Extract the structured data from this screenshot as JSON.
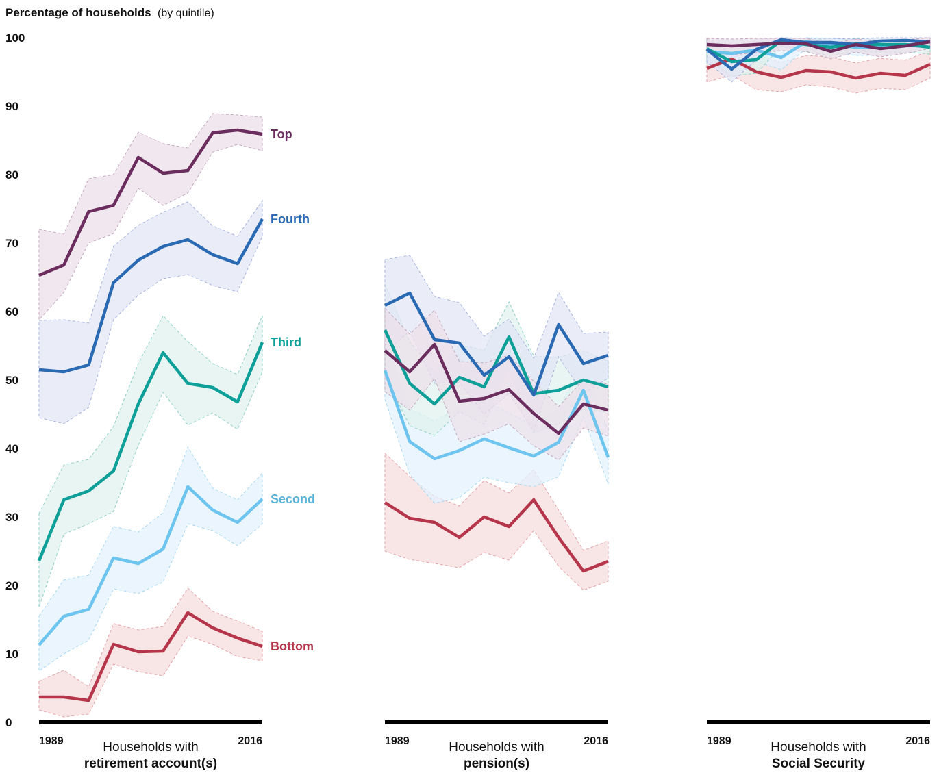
{
  "chart_data": {
    "type": "line",
    "title": "Percentage of households",
    "title_suffix": "(by quintile)",
    "ylim": [
      0,
      100
    ],
    "yticks": [
      0,
      10,
      20,
      30,
      40,
      50,
      60,
      70,
      80,
      90,
      100
    ],
    "x": [
      "1989",
      "1992",
      "1995",
      "1998",
      "2001",
      "2004",
      "2007",
      "2010",
      "2013",
      "2016"
    ],
    "x_labels_shown": [
      "1989",
      "2016"
    ],
    "series_styles": [
      {
        "name": "Bottom",
        "color": "#b5364b",
        "fill": "#f6dcdc",
        "stroke_dash": "#e3a3a8"
      },
      {
        "name": "Second",
        "color": "#6cc4ef",
        "fill": "#e3f2fd",
        "stroke_dash": "#a8d8f2"
      },
      {
        "name": "Third",
        "color": "#0d9f98",
        "fill": "#e0f2ee",
        "stroke_dash": "#8fd0c8"
      },
      {
        "name": "Fourth",
        "color": "#2a6ab3",
        "fill": "#e3e6f5",
        "stroke_dash": "#a7b4de"
      },
      {
        "name": "Top",
        "color": "#6b2c5e",
        "fill": "#ece0e9",
        "stroke_dash": "#c3a8be"
      }
    ],
    "label_colors": {
      "Bottom": "#b5364b",
      "Second": "#5bb3d8",
      "Third": "#0d9f98",
      "Fourth": "#2a6ab3",
      "Top": "#6b2c5e"
    },
    "panels": [
      {
        "label_line1": "Households with",
        "label_line2": "retirement account(s)",
        "show_series_labels": true,
        "series": [
          {
            "name": "Bottom",
            "values": [
              3.7,
              3.7,
              3.2,
              11.4,
              10.3,
              10.4,
              16.0,
              13.8,
              12.3,
              11.1
            ],
            "lower": [
              1.8,
              0.8,
              1.2,
              8.5,
              7.4,
              6.8,
              12.6,
              11.4,
              9.6,
              9.0
            ],
            "upper": [
              6.0,
              7.6,
              5.2,
              14.4,
              13.5,
              14.0,
              19.6,
              16.2,
              14.8,
              13.3
            ]
          },
          {
            "name": "Second",
            "values": [
              11.3,
              15.5,
              16.5,
              24.0,
              23.2,
              25.3,
              34.4,
              31.0,
              29.2,
              32.6
            ],
            "lower": [
              7.5,
              10.0,
              12.0,
              19.5,
              18.8,
              20.5,
              29.0,
              28.0,
              25.8,
              29.0
            ],
            "upper": [
              15.5,
              20.8,
              21.5,
              28.6,
              27.8,
              30.6,
              40.2,
              34.2,
              32.5,
              36.4
            ]
          },
          {
            "name": "Third",
            "values": [
              23.6,
              32.5,
              33.8,
              36.7,
              46.5,
              54.0,
              49.5,
              48.9,
              46.8,
              55.5
            ],
            "lower": [
              16.8,
              27.5,
              29.0,
              30.8,
              40.5,
              48.2,
              43.4,
              45.2,
              42.8,
              51.2
            ],
            "upper": [
              30.5,
              37.6,
              38.4,
              43.2,
              52.4,
              59.4,
              55.6,
              52.4,
              50.8,
              59.4
            ]
          },
          {
            "name": "Fourth",
            "values": [
              51.5,
              51.2,
              52.2,
              64.2,
              67.5,
              69.5,
              70.5,
              68.3,
              67.0,
              73.5
            ],
            "lower": [
              44.5,
              43.6,
              46.0,
              58.8,
              62.4,
              64.8,
              65.4,
              63.8,
              62.9,
              71.0
            ],
            "upper": [
              58.7,
              58.8,
              58.3,
              69.5,
              72.6,
              74.5,
              76.0,
              72.5,
              71.0,
              76.2
            ]
          },
          {
            "name": "Top",
            "values": [
              65.3,
              66.8,
              74.6,
              75.5,
              82.5,
              80.2,
              80.6,
              86.1,
              86.5,
              85.9
            ],
            "lower": [
              58.8,
              62.8,
              70.0,
              71.4,
              78.0,
              75.5,
              77.3,
              83.3,
              84.4,
              83.5
            ],
            "upper": [
              72.0,
              71.3,
              79.4,
              80.0,
              86.2,
              84.5,
              83.9,
              88.9,
              88.7,
              88.4
            ]
          }
        ]
      },
      {
        "label_line1": "Households with",
        "label_line2": "pension(s)",
        "show_series_labels": false,
        "series": [
          {
            "name": "Bottom",
            "values": [
              32.1,
              29.8,
              29.2,
              27.0,
              30.0,
              28.6,
              32.5,
              27.0,
              22.1,
              23.5
            ],
            "lower": [
              25.0,
              23.8,
              23.2,
              22.6,
              24.8,
              23.7,
              28.0,
              22.8,
              19.3,
              20.6
            ],
            "upper": [
              39.3,
              35.9,
              33.0,
              31.6,
              35.3,
              33.5,
              36.9,
              31.0,
              25.1,
              26.5
            ]
          },
          {
            "name": "Second",
            "values": [
              51.4,
              41.0,
              38.5,
              39.7,
              41.4,
              40.1,
              38.9,
              40.9,
              48.5,
              38.7
            ],
            "lower": [
              47.2,
              36.2,
              32.0,
              32.8,
              35.8,
              35.0,
              34.4,
              35.9,
              44.6,
              34.8
            ],
            "upper": [
              55.6,
              45.8,
              44.0,
              46.0,
              47.0,
              45.2,
              43.4,
              45.9,
              52.4,
              42.6
            ]
          },
          {
            "name": "Third",
            "values": [
              57.3,
              49.5,
              46.5,
              50.4,
              49.0,
              56.3,
              48.0,
              48.5,
              50.0,
              49.0
            ],
            "lower": [
              50.6,
              43.3,
              41.9,
              45.4,
              43.5,
              51.6,
              42.3,
              43.6,
              45.7,
              45.3
            ],
            "upper": [
              64.0,
              55.6,
              51.2,
              55.1,
              54.4,
              61.4,
              53.5,
              53.3,
              54.3,
              52.7
            ]
          },
          {
            "name": "Fourth",
            "values": [
              60.9,
              62.7,
              55.9,
              55.4,
              50.7,
              53.4,
              47.8,
              58.1,
              52.4,
              53.6
            ],
            "lower": [
              54.0,
              57.2,
              49.5,
              49.7,
              45.0,
              48.0,
              42.5,
              53.4,
              48.0,
              50.3
            ],
            "upper": [
              67.6,
              68.2,
              62.2,
              61.3,
              56.4,
              58.9,
              53.2,
              62.8,
              56.8,
              57.0
            ]
          },
          {
            "name": "Top",
            "values": [
              54.3,
              51.2,
              55.2,
              46.9,
              47.3,
              48.6,
              45.1,
              42.2,
              46.5,
              45.6
            ],
            "lower": [
              48.3,
              45.6,
              50.2,
              41.0,
              42.1,
              43.6,
              40.4,
              38.3,
              43.0,
              41.8
            ],
            "upper": [
              60.5,
              56.7,
              60.2,
              52.7,
              52.5,
              53.6,
              49.8,
              46.1,
              50.0,
              49.4
            ]
          }
        ]
      },
      {
        "label_line1": "Households with",
        "label_line2": "Social Security",
        "show_series_labels": false,
        "series": [
          {
            "name": "Bottom",
            "values": [
              95.5,
              96.9,
              95.0,
              94.2,
              95.2,
              95.0,
              94.1,
              94.8,
              94.5,
              96.1
            ],
            "lower": [
              93.5,
              94.5,
              92.4,
              92.1,
              93.1,
              92.8,
              91.9,
              92.6,
              92.4,
              94.1
            ],
            "upper": [
              97.6,
              99.2,
              97.5,
              96.4,
              97.4,
              97.2,
              96.3,
              97.0,
              96.7,
              98.1
            ]
          },
          {
            "name": "Second",
            "values": [
              98.0,
              97.7,
              98.2,
              97.1,
              99.4,
              99.0,
              98.6,
              98.6,
              98.9,
              99.4
            ],
            "lower": [
              96.1,
              95.6,
              96.5,
              95.3,
              98.4,
              97.8,
              97.4,
              97.4,
              97.9,
              98.4
            ],
            "upper": [
              99.7,
              99.6,
              99.7,
              99.0,
              100.0,
              99.9,
              99.7,
              99.7,
              99.7,
              99.9
            ]
          },
          {
            "name": "Third",
            "values": [
              98.4,
              96.5,
              96.8,
              99.6,
              99.0,
              98.6,
              99.1,
              99.0,
              99.0,
              98.6
            ],
            "lower": [
              96.8,
              94.4,
              94.8,
              98.7,
              97.9,
              97.4,
              98.0,
              97.9,
              97.9,
              97.6
            ],
            "upper": [
              99.8,
              98.6,
              98.7,
              100.0,
              99.9,
              99.6,
              99.9,
              99.8,
              99.8,
              99.5
            ]
          },
          {
            "name": "Fourth",
            "values": [
              98.3,
              95.4,
              98.3,
              99.7,
              99.3,
              99.3,
              99.0,
              99.5,
              99.6,
              99.4
            ],
            "lower": [
              96.5,
              93.5,
              96.8,
              98.8,
              98.3,
              98.3,
              98.0,
              98.5,
              98.6,
              98.5
            ],
            "upper": [
              99.8,
              97.6,
              99.7,
              100.0,
              99.9,
              99.9,
              99.8,
              100.0,
              100.0,
              100.0
            ]
          },
          {
            "name": "Top",
            "values": [
              99.0,
              98.8,
              99.0,
              99.2,
              99.1,
              98.0,
              99.0,
              98.4,
              98.8,
              99.4
            ],
            "lower": [
              97.8,
              97.5,
              97.8,
              98.1,
              98.0,
              96.9,
              97.9,
              97.2,
              97.7,
              98.4
            ],
            "upper": [
              99.9,
              99.8,
              99.9,
              99.9,
              99.9,
              99.1,
              99.8,
              99.4,
              99.7,
              100.0
            ]
          }
        ]
      }
    ]
  }
}
